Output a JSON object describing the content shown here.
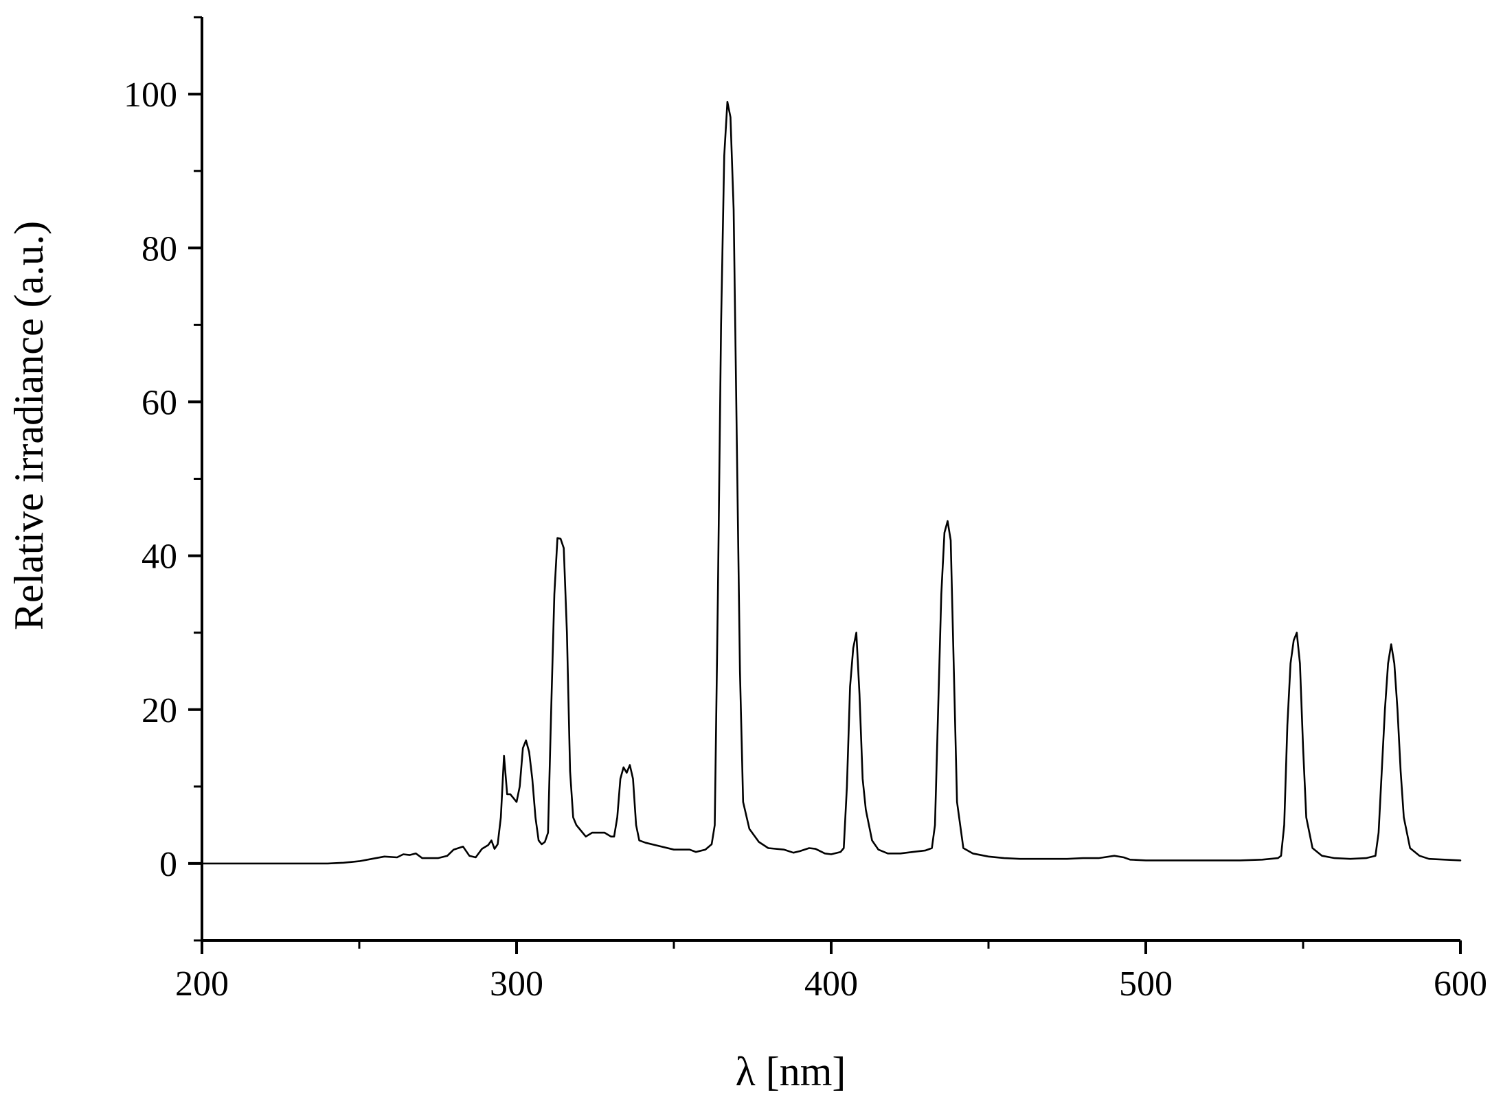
{
  "chart_data": {
    "type": "line",
    "xlabel": "λ [nm]",
    "ylabel": "Relative irradiance (a.u.)",
    "xlim": [
      200,
      600
    ],
    "ylim": [
      -10,
      110
    ],
    "x_ticks": [
      200,
      300,
      400,
      500,
      600
    ],
    "x_minor_ticks": [
      250,
      350,
      450,
      550
    ],
    "y_ticks": [
      0,
      20,
      40,
      60,
      80,
      100
    ],
    "y_minor_ticks": [
      -10,
      10,
      30,
      50,
      70,
      90,
      110
    ],
    "grid": false,
    "line_color": "#000000",
    "series": [
      {
        "points": [
          [
            200,
            0
          ],
          [
            220,
            0
          ],
          [
            240,
            0
          ],
          [
            245,
            0.1
          ],
          [
            250,
            0.3
          ],
          [
            254,
            0.6
          ],
          [
            258,
            0.9
          ],
          [
            262,
            0.8
          ],
          [
            264,
            1.2
          ],
          [
            266,
            1.1
          ],
          [
            268,
            1.3
          ],
          [
            270,
            0.7
          ],
          [
            275,
            0.7
          ],
          [
            278,
            1.0
          ],
          [
            280,
            1.8
          ],
          [
            283,
            2.2
          ],
          [
            285,
            1.0
          ],
          [
            287,
            0.8
          ],
          [
            289,
            1.9
          ],
          [
            291,
            2.4
          ],
          [
            292,
            3.0
          ],
          [
            293,
            1.9
          ],
          [
            294,
            2.5
          ],
          [
            295,
            6.0
          ],
          [
            296,
            14.0
          ],
          [
            297,
            9.0
          ],
          [
            298,
            9.0
          ],
          [
            299,
            8.5
          ],
          [
            300,
            8.0
          ],
          [
            301,
            10.0
          ],
          [
            302,
            15.0
          ],
          [
            303,
            16.0
          ],
          [
            304,
            14.5
          ],
          [
            305,
            11.0
          ],
          [
            306,
            6.0
          ],
          [
            307,
            3.0
          ],
          [
            308,
            2.5
          ],
          [
            309,
            2.8
          ],
          [
            310,
            4.0
          ],
          [
            311,
            20.0
          ],
          [
            312,
            35.0
          ],
          [
            313,
            42.3
          ],
          [
            314,
            42.2
          ],
          [
            315,
            41.0
          ],
          [
            316,
            30.0
          ],
          [
            317,
            12.0
          ],
          [
            318,
            6.0
          ],
          [
            319,
            5.0
          ],
          [
            320,
            4.5
          ],
          [
            322,
            3.5
          ],
          [
            324,
            4.0
          ],
          [
            326,
            4.0
          ],
          [
            328,
            4.0
          ],
          [
            330,
            3.5
          ],
          [
            331,
            3.5
          ],
          [
            332,
            6.0
          ],
          [
            333,
            11.0
          ],
          [
            334,
            12.5
          ],
          [
            335,
            11.8
          ],
          [
            336,
            12.8
          ],
          [
            337,
            11.0
          ],
          [
            338,
            5.0
          ],
          [
            339,
            3.0
          ],
          [
            341,
            2.7
          ],
          [
            345,
            2.3
          ],
          [
            350,
            1.8
          ],
          [
            355,
            1.8
          ],
          [
            357,
            1.5
          ],
          [
            360,
            1.8
          ],
          [
            362,
            2.5
          ],
          [
            363,
            5.0
          ],
          [
            364,
            35.0
          ],
          [
            365,
            70.0
          ],
          [
            366,
            92.0
          ],
          [
            367,
            99.0
          ],
          [
            368,
            97.0
          ],
          [
            369,
            85.0
          ],
          [
            370,
            55.0
          ],
          [
            371,
            25.0
          ],
          [
            372,
            8.0
          ],
          [
            374,
            4.5
          ],
          [
            377,
            2.8
          ],
          [
            380,
            2.0
          ],
          [
            385,
            1.8
          ],
          [
            388,
            1.4
          ],
          [
            390,
            1.6
          ],
          [
            393,
            2.0
          ],
          [
            395,
            1.9
          ],
          [
            398,
            1.3
          ],
          [
            400,
            1.2
          ],
          [
            403,
            1.5
          ],
          [
            404,
            2.0
          ],
          [
            405,
            10.0
          ],
          [
            406,
            23.0
          ],
          [
            407,
            28.0
          ],
          [
            408,
            30.0
          ],
          [
            409,
            22.0
          ],
          [
            410,
            11.0
          ],
          [
            411,
            7.0
          ],
          [
            413,
            3.0
          ],
          [
            415,
            1.8
          ],
          [
            418,
            1.3
          ],
          [
            422,
            1.3
          ],
          [
            426,
            1.5
          ],
          [
            430,
            1.7
          ],
          [
            432,
            2.0
          ],
          [
            433,
            5.0
          ],
          [
            434,
            20.0
          ],
          [
            435,
            35.0
          ],
          [
            436,
            43.0
          ],
          [
            437,
            44.5
          ],
          [
            438,
            42.0
          ],
          [
            439,
            25.0
          ],
          [
            440,
            8.0
          ],
          [
            442,
            2.0
          ],
          [
            445,
            1.3
          ],
          [
            450,
            0.9
          ],
          [
            455,
            0.7
          ],
          [
            460,
            0.6
          ],
          [
            470,
            0.6
          ],
          [
            475,
            0.6
          ],
          [
            480,
            0.7
          ],
          [
            485,
            0.7
          ],
          [
            490,
            1.0
          ],
          [
            493,
            0.8
          ],
          [
            495,
            0.5
          ],
          [
            500,
            0.4
          ],
          [
            520,
            0.4
          ],
          [
            530,
            0.4
          ],
          [
            537,
            0.5
          ],
          [
            542,
            0.7
          ],
          [
            543,
            1.0
          ],
          [
            544,
            5.0
          ],
          [
            545,
            18.0
          ],
          [
            546,
            26.0
          ],
          [
            547,
            29.0
          ],
          [
            548,
            30.0
          ],
          [
            549,
            26.0
          ],
          [
            550,
            15.0
          ],
          [
            551,
            6.0
          ],
          [
            553,
            2.0
          ],
          [
            556,
            1.0
          ],
          [
            560,
            0.7
          ],
          [
            565,
            0.6
          ],
          [
            570,
            0.7
          ],
          [
            573,
            1.0
          ],
          [
            574,
            4.0
          ],
          [
            575,
            12.0
          ],
          [
            576,
            20.0
          ],
          [
            577,
            26.0
          ],
          [
            578,
            28.5
          ],
          [
            579,
            26.0
          ],
          [
            580,
            20.0
          ],
          [
            581,
            12.0
          ],
          [
            582,
            6.0
          ],
          [
            584,
            2.0
          ],
          [
            587,
            1.0
          ],
          [
            590,
            0.6
          ],
          [
            595,
            0.5
          ],
          [
            600,
            0.4
          ]
        ]
      }
    ]
  }
}
